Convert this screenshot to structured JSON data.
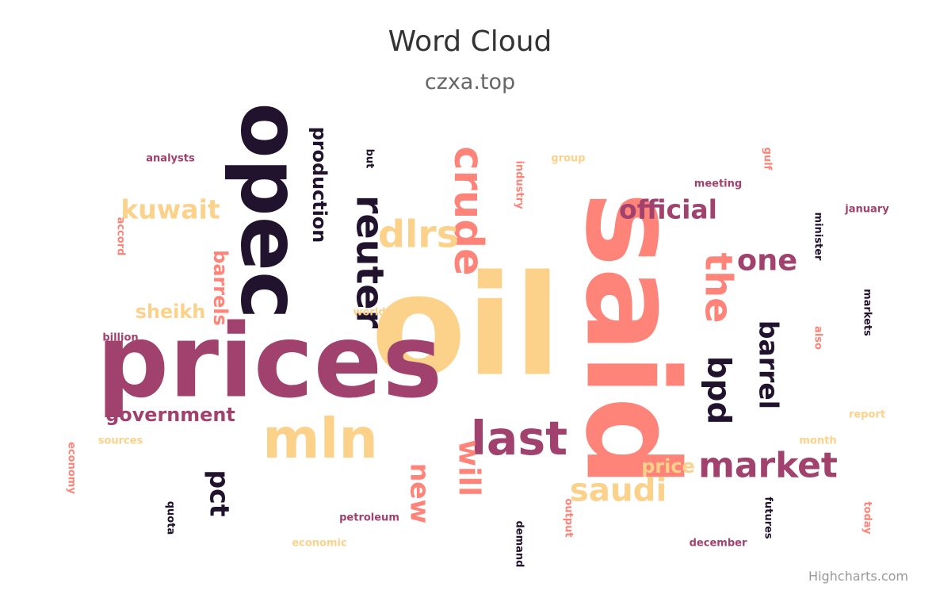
{
  "chart_data": {
    "type": "wordcloud",
    "title": "Word Cloud",
    "subtitle": "czxa.top",
    "credits": "Highcharts.com",
    "palette": [
      "#fcd18a",
      "#fe8378",
      "#a1416d",
      "#21122e"
    ],
    "words": [
      {
        "text": "oil",
        "weight": 100,
        "color": "#fcd18a",
        "orientation": "horizontal"
      },
      {
        "text": "said",
        "weight": 92,
        "color": "#fe8378",
        "orientation": "vertical"
      },
      {
        "text": "prices",
        "weight": 74,
        "color": "#a1416d",
        "orientation": "horizontal"
      },
      {
        "text": "opec",
        "weight": 60,
        "color": "#21122e",
        "orientation": "vertical"
      },
      {
        "text": "mln",
        "weight": 42,
        "color": "#fcd18a",
        "orientation": "horizontal"
      },
      {
        "text": "last",
        "weight": 36,
        "color": "#a1416d",
        "orientation": "horizontal"
      },
      {
        "text": "crude",
        "weight": 32,
        "color": "#fe8378",
        "orientation": "vertical"
      },
      {
        "text": "dlrs",
        "weight": 30,
        "color": "#fcd18a",
        "orientation": "horizontal"
      },
      {
        "text": "reuter",
        "weight": 30,
        "color": "#21122e",
        "orientation": "vertical"
      },
      {
        "text": "the",
        "weight": 30,
        "color": "#fe8378",
        "orientation": "vertical"
      },
      {
        "text": "market",
        "weight": 28,
        "color": "#a1416d",
        "orientation": "horizontal"
      },
      {
        "text": "bpd",
        "weight": 26,
        "color": "#21122e",
        "orientation": "vertical"
      },
      {
        "text": "saudi",
        "weight": 26,
        "color": "#fcd18a",
        "orientation": "horizontal"
      },
      {
        "text": "will",
        "weight": 24,
        "color": "#fe8378",
        "orientation": "vertical"
      },
      {
        "text": "one",
        "weight": 24,
        "color": "#a1416d",
        "orientation": "horizontal"
      },
      {
        "text": "official",
        "weight": 22,
        "color": "#a1416d",
        "orientation": "horizontal"
      },
      {
        "text": "barrel",
        "weight": 22,
        "color": "#21122e",
        "orientation": "vertical"
      },
      {
        "text": "kuwait",
        "weight": 22,
        "color": "#fcd18a",
        "orientation": "horizontal"
      },
      {
        "text": "new",
        "weight": 22,
        "color": "#fe8378",
        "orientation": "vertical"
      },
      {
        "text": "pct",
        "weight": 22,
        "color": "#21122e",
        "orientation": "vertical"
      },
      {
        "text": "production",
        "weight": 17,
        "color": "#21122e",
        "orientation": "vertical"
      },
      {
        "text": "government",
        "weight": 17,
        "color": "#a1416d",
        "orientation": "horizontal"
      },
      {
        "text": "barrels",
        "weight": 17,
        "color": "#fe8378",
        "orientation": "vertical"
      },
      {
        "text": "sheikh",
        "weight": 17,
        "color": "#fcd18a",
        "orientation": "horizontal"
      },
      {
        "text": "price",
        "weight": 17,
        "color": "#fcd18a",
        "orientation": "horizontal"
      },
      {
        "text": "analysts",
        "weight": 11,
        "color": "#a1416d",
        "orientation": "horizontal"
      },
      {
        "text": "but",
        "weight": 11,
        "color": "#21122e",
        "orientation": "vertical"
      },
      {
        "text": "industry",
        "weight": 11,
        "color": "#fe8378",
        "orientation": "vertical"
      },
      {
        "text": "group",
        "weight": 11,
        "color": "#fcd18a",
        "orientation": "horizontal"
      },
      {
        "text": "gulf",
        "weight": 11,
        "color": "#fe8378",
        "orientation": "vertical"
      },
      {
        "text": "meeting",
        "weight": 11,
        "color": "#a1416d",
        "orientation": "horizontal"
      },
      {
        "text": "january",
        "weight": 11,
        "color": "#a1416d",
        "orientation": "horizontal"
      },
      {
        "text": "minister",
        "weight": 11,
        "color": "#21122e",
        "orientation": "vertical"
      },
      {
        "text": "accord",
        "weight": 11,
        "color": "#fe8378",
        "orientation": "vertical"
      },
      {
        "text": "world",
        "weight": 11,
        "color": "#fcd18a",
        "orientation": "horizontal"
      },
      {
        "text": "billion",
        "weight": 11,
        "color": "#a1416d",
        "orientation": "horizontal"
      },
      {
        "text": "markets",
        "weight": 11,
        "color": "#21122e",
        "orientation": "vertical"
      },
      {
        "text": "also",
        "weight": 11,
        "color": "#fe8378",
        "orientation": "vertical"
      },
      {
        "text": "report",
        "weight": 11,
        "color": "#fcd18a",
        "orientation": "horizontal"
      },
      {
        "text": "sources",
        "weight": 11,
        "color": "#fcd18a",
        "orientation": "horizontal"
      },
      {
        "text": "month",
        "weight": 11,
        "color": "#fcd18a",
        "orientation": "horizontal"
      },
      {
        "text": "economy",
        "weight": 11,
        "color": "#fe8378",
        "orientation": "vertical"
      },
      {
        "text": "quota",
        "weight": 11,
        "color": "#21122e",
        "orientation": "vertical"
      },
      {
        "text": "petroleum",
        "weight": 11,
        "color": "#a1416d",
        "orientation": "horizontal"
      },
      {
        "text": "output",
        "weight": 11,
        "color": "#fe8378",
        "orientation": "vertical"
      },
      {
        "text": "futures",
        "weight": 11,
        "color": "#21122e",
        "orientation": "vertical"
      },
      {
        "text": "today",
        "weight": 11,
        "color": "#fe8378",
        "orientation": "vertical"
      },
      {
        "text": "economic",
        "weight": 11,
        "color": "#fcd18a",
        "orientation": "horizontal"
      },
      {
        "text": "demand",
        "weight": 11,
        "color": "#21122e",
        "orientation": "vertical"
      },
      {
        "text": "december",
        "weight": 11,
        "color": "#a1416d",
        "orientation": "horizontal"
      }
    ]
  }
}
